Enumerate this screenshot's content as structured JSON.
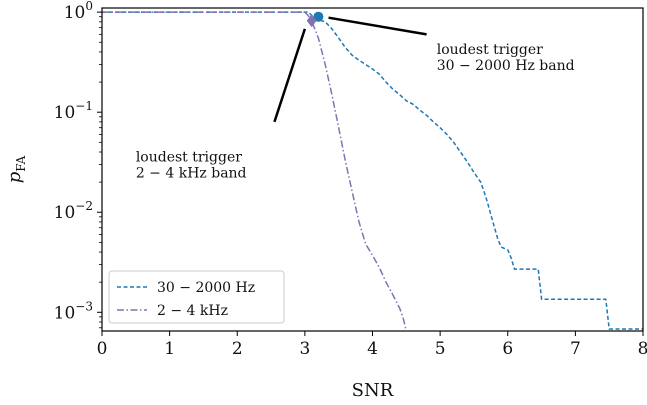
{
  "chart_data": {
    "type": "line",
    "xlabel": "SNR",
    "ylabel": "p_FA",
    "ylabel_main": "p",
    "ylabel_sub": "FA",
    "xscale": "linear",
    "yscale": "log",
    "xlim": [
      0,
      8
    ],
    "ylim": [
      0.00065,
      1.1
    ],
    "x_ticks": [
      0,
      1,
      2,
      3,
      4,
      5,
      6,
      7,
      8
    ],
    "x_tick_labels": [
      "0",
      "1",
      "2",
      "3",
      "4",
      "5",
      "6",
      "7",
      "8"
    ],
    "y_ticks": [
      {
        "value": 1,
        "base": "10",
        "exp": "0"
      },
      {
        "value": 0.1,
        "base": "10",
        "exp": "−1"
      },
      {
        "value": 0.01,
        "base": "10",
        "exp": "−2"
      },
      {
        "value": 0.001,
        "base": "10",
        "exp": "−3"
      }
    ],
    "grid": false,
    "legend_position": "bottom-left",
    "series": [
      {
        "name": "30 − 2000 Hz",
        "color": "#1f77b4",
        "linestyle": "dashed",
        "points": [
          [
            0,
            1.0
          ],
          [
            3.05,
            1.0
          ],
          [
            3.1,
            0.93
          ],
          [
            3.2,
            0.84
          ],
          [
            3.3,
            0.8
          ],
          [
            3.4,
            0.68
          ],
          [
            3.5,
            0.55
          ],
          [
            3.6,
            0.44
          ],
          [
            3.7,
            0.37
          ],
          [
            3.8,
            0.33
          ],
          [
            3.9,
            0.3
          ],
          [
            4.0,
            0.27
          ],
          [
            4.1,
            0.24
          ],
          [
            4.2,
            0.2
          ],
          [
            4.3,
            0.17
          ],
          [
            4.4,
            0.15
          ],
          [
            4.5,
            0.13
          ],
          [
            4.6,
            0.12
          ],
          [
            4.7,
            0.105
          ],
          [
            4.8,
            0.093
          ],
          [
            4.9,
            0.08
          ],
          [
            5.0,
            0.07
          ],
          [
            5.1,
            0.06
          ],
          [
            5.2,
            0.05
          ],
          [
            5.3,
            0.04
          ],
          [
            5.4,
            0.032
          ],
          [
            5.5,
            0.025
          ],
          [
            5.6,
            0.02
          ],
          [
            5.65,
            0.016
          ],
          [
            5.7,
            0.0125
          ],
          [
            5.75,
            0.0095
          ],
          [
            5.8,
            0.0072
          ],
          [
            5.85,
            0.0055
          ],
          [
            5.9,
            0.0045
          ],
          [
            6.0,
            0.0042
          ],
          [
            6.05,
            0.0035
          ],
          [
            6.1,
            0.0027
          ],
          [
            6.2,
            0.0027
          ],
          [
            6.45,
            0.0027
          ],
          [
            6.5,
            0.00135
          ],
          [
            7.45,
            0.00135
          ],
          [
            7.5,
            0.00068
          ],
          [
            8.0,
            0.00068
          ]
        ]
      },
      {
        "name": "2 − 4 kHz",
        "color": "#8172b2",
        "linestyle": "dashdot",
        "points": [
          [
            0,
            1.0
          ],
          [
            3.0,
            1.0
          ],
          [
            3.05,
            0.92
          ],
          [
            3.1,
            0.82
          ],
          [
            3.2,
            0.55
          ],
          [
            3.3,
            0.3
          ],
          [
            3.4,
            0.15
          ],
          [
            3.5,
            0.07
          ],
          [
            3.6,
            0.032
          ],
          [
            3.7,
            0.016
          ],
          [
            3.8,
            0.008
          ],
          [
            3.9,
            0.0048
          ],
          [
            4.0,
            0.0037
          ],
          [
            4.1,
            0.0028
          ],
          [
            4.2,
            0.002
          ],
          [
            4.3,
            0.0015
          ],
          [
            4.4,
            0.0011
          ],
          [
            4.45,
            0.0009
          ],
          [
            4.5,
            0.00065
          ]
        ]
      }
    ],
    "loudest_triggers": [
      {
        "name": "30 − 2000 Hz",
        "x": 3.2,
        "y": 0.9,
        "marker": "circle",
        "color": "#1f77b4"
      },
      {
        "name": "2 − 4 kHz",
        "x": 3.1,
        "y": 0.82,
        "marker": "diamond",
        "color": "#8172b2"
      }
    ],
    "annotations": [
      {
        "lines": [
          "loudest trigger",
          "30 − 2000 Hz band"
        ],
        "text_x": 4.95,
        "text_y": 0.38,
        "arrow_from": [
          4.8,
          0.6
        ],
        "arrow_to": [
          3.35,
          0.88
        ]
      },
      {
        "lines": [
          "loudest trigger",
          "2 − 4 kHz band"
        ],
        "text_x": 0.5,
        "text_y": 0.032,
        "arrow_from": [
          2.55,
          0.08
        ],
        "arrow_to": [
          3.0,
          0.68
        ]
      }
    ]
  }
}
